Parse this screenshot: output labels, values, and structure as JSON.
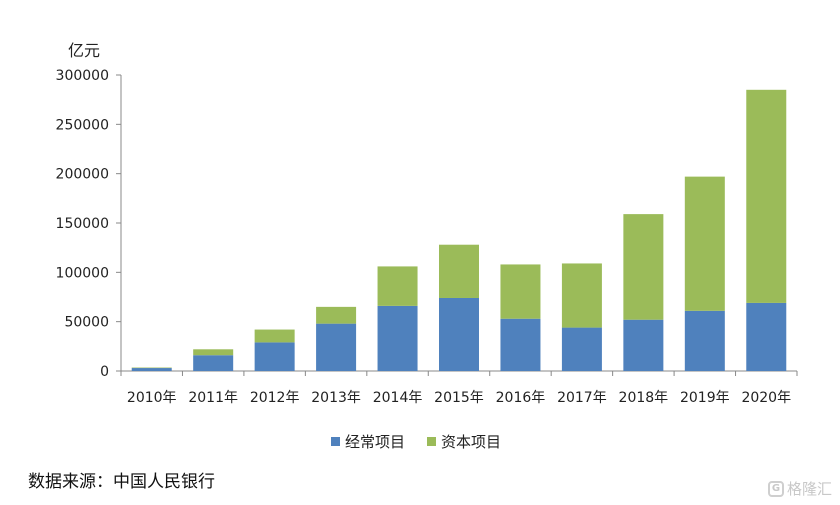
{
  "chart_data": {
    "type": "bar",
    "stacked": true,
    "categories": [
      "2010年",
      "2011年",
      "2012年",
      "2013年",
      "2014年",
      "2015年",
      "2016年",
      "2017年",
      "2018年",
      "2019年",
      "2020年"
    ],
    "series": [
      {
        "name": "经常项目",
        "color": "#4f81bd",
        "values": [
          3000,
          16000,
          29000,
          48000,
          66000,
          74000,
          53000,
          44000,
          52000,
          61000,
          69000
        ]
      },
      {
        "name": "资本项目",
        "color": "#9bbb59",
        "values": [
          500,
          6000,
          13000,
          17000,
          40000,
          54000,
          55000,
          65000,
          107000,
          136000,
          216000
        ]
      }
    ],
    "ylabel": "亿元",
    "ylim": [
      0,
      300000
    ],
    "yticks": [
      "0",
      "50000",
      "100000",
      "150000",
      "200000",
      "250000",
      "300000"
    ],
    "grid": false,
    "legend_position": "bottom"
  },
  "source": "数据来源：中国人民银行",
  "watermark": "格隆汇",
  "watermark_logo": "G"
}
